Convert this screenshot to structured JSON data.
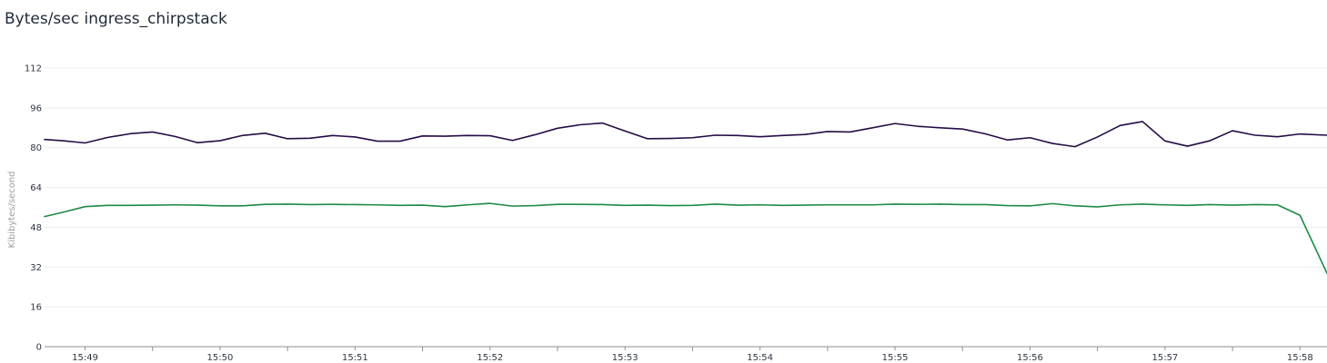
{
  "panel": {
    "title": "Bytes/sec ingress_chirpstack"
  },
  "chart_data": {
    "type": "line",
    "title": "Bytes/sec ingress_chirpstack",
    "xlabel": "",
    "ylabel": "Kibibytes/second",
    "ylim": [
      0,
      112
    ],
    "y_ticks": [
      0,
      16,
      32,
      48,
      64,
      80,
      96,
      112
    ],
    "x_range": [
      "15:48:42",
      "15:58:12"
    ],
    "x_ticks": [
      "15:49",
      "15:50",
      "15:51",
      "15:52",
      "15:53",
      "15:54",
      "15:55",
      "15:56",
      "15:57",
      "15:58"
    ],
    "grid": "horizontal",
    "legend": "none",
    "x": [
      "15:48:42",
      "15:48:50",
      "15:49:00",
      "15:49:10",
      "15:49:20",
      "15:49:30",
      "15:49:40",
      "15:49:50",
      "15:50:00",
      "15:50:10",
      "15:50:20",
      "15:50:30",
      "15:50:40",
      "15:50:50",
      "15:51:00",
      "15:51:10",
      "15:51:20",
      "15:51:30",
      "15:51:40",
      "15:51:50",
      "15:52:00",
      "15:52:10",
      "15:52:20",
      "15:52:30",
      "15:52:40",
      "15:52:50",
      "15:53:00",
      "15:53:10",
      "15:53:20",
      "15:53:30",
      "15:53:40",
      "15:53:50",
      "15:54:00",
      "15:54:10",
      "15:54:20",
      "15:54:30",
      "15:54:40",
      "15:54:50",
      "15:55:00",
      "15:55:10",
      "15:55:20",
      "15:55:30",
      "15:55:40",
      "15:55:50",
      "15:56:00",
      "15:56:10",
      "15:56:20",
      "15:56:30",
      "15:56:40",
      "15:56:50",
      "15:57:00",
      "15:57:10",
      "15:57:20",
      "15:57:30",
      "15:57:40",
      "15:57:50",
      "15:58:00",
      "15:58:12"
    ],
    "series": [
      {
        "color": "#240c45",
        "values": [
          83.3,
          82.8,
          81.9,
          84.1,
          85.6,
          86.3,
          84.5,
          82.0,
          82.8,
          84.9,
          85.8,
          83.6,
          83.8,
          84.9,
          84.3,
          82.6,
          82.6,
          84.7,
          84.6,
          84.9,
          84.8,
          82.9,
          85.2,
          87.8,
          89.2,
          89.9,
          86.7,
          83.6,
          83.7,
          84.0,
          85.0,
          84.9,
          84.4,
          84.9,
          85.3,
          86.5,
          86.3,
          88.0,
          89.7,
          88.6,
          88.0,
          87.5,
          85.6,
          83.1,
          84.0,
          81.7,
          80.4,
          84.3,
          88.9,
          90.5,
          82.7,
          80.6,
          82.8,
          86.8,
          85.0,
          84.4,
          85.5,
          85.0
        ]
      },
      {
        "color": "#1e8a45",
        "values": [
          52.3,
          54.0,
          56.3,
          56.8,
          56.8,
          56.9,
          57.0,
          56.9,
          56.6,
          56.6,
          57.2,
          57.3,
          57.1,
          57.2,
          57.1,
          57.0,
          56.8,
          56.9,
          56.3,
          57.0,
          57.6,
          56.5,
          56.7,
          57.2,
          57.2,
          57.1,
          56.8,
          56.9,
          56.7,
          56.8,
          57.3,
          56.9,
          57.0,
          56.8,
          56.9,
          57.0,
          57.0,
          57.0,
          57.3,
          57.2,
          57.3,
          57.1,
          57.1,
          56.7,
          56.6,
          57.5,
          56.6,
          56.2,
          57.0,
          57.3,
          57.0,
          56.8,
          57.1,
          56.9,
          57.1,
          57.0,
          52.8,
          29.5
        ]
      }
    ]
  }
}
